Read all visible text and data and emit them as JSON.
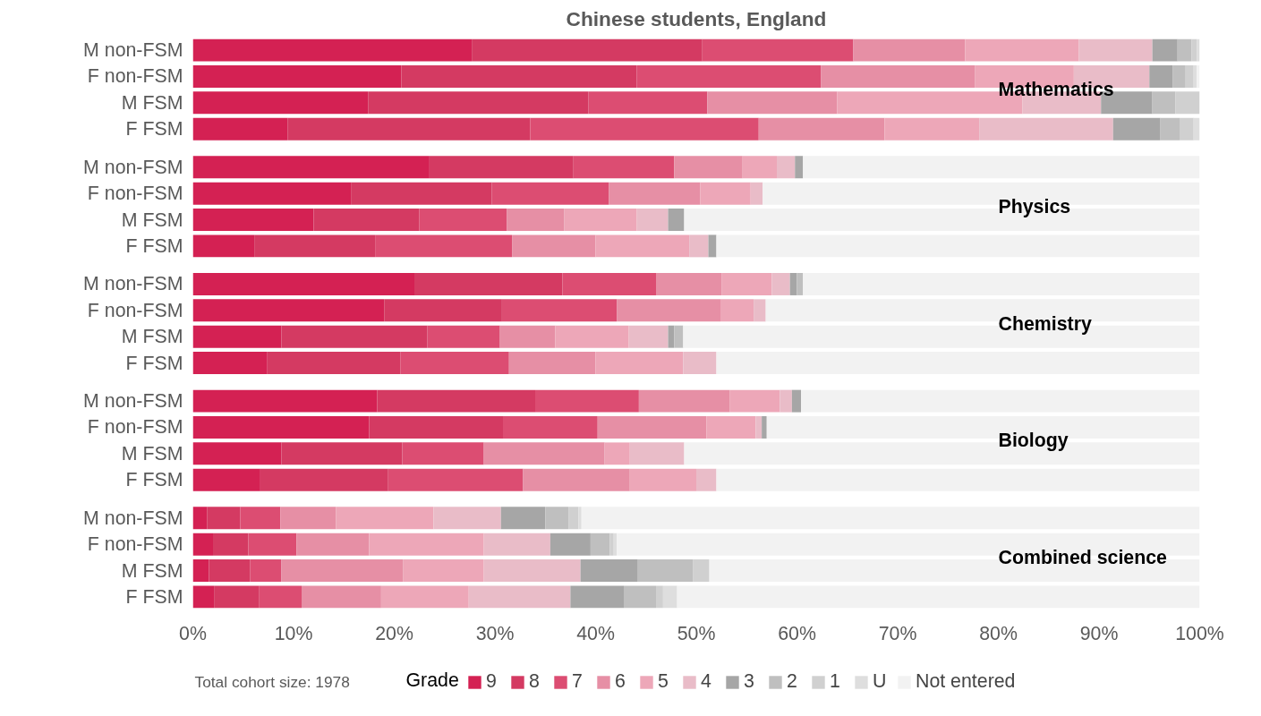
{
  "chart_data": {
    "type": "bar",
    "orientation": "horizontal",
    "stacked": true,
    "title": "Chinese students, England",
    "categories": [
      "M non-FSM",
      "F non-FSM",
      "M FSM",
      "F FSM",
      "M non-FSM",
      "F non-FSM",
      "M FSM",
      "F FSM",
      "M non-FSM",
      "F non-FSM",
      "M FSM",
      "F FSM",
      "M non-FSM",
      "F non-FSM",
      "M FSM",
      "F FSM",
      "M non-FSM",
      "F non-FSM",
      "M FSM",
      "F FSM"
    ],
    "legend_title": "Grade",
    "legend": "bottom",
    "grid": false,
    "xlim": [
      0,
      100
    ],
    "xticks": [
      {
        "value": 0,
        "label": "0%"
      },
      {
        "value": 10,
        "label": "10%"
      },
      {
        "value": 20,
        "label": "20%"
      },
      {
        "value": 30,
        "label": "30%"
      },
      {
        "value": 40,
        "label": "40%"
      },
      {
        "value": 50,
        "label": "50%"
      },
      {
        "value": 60,
        "label": "60%"
      },
      {
        "value": 70,
        "label": "70%"
      },
      {
        "value": 80,
        "label": "80%"
      },
      {
        "value": 90,
        "label": "90%"
      },
      {
        "value": 100,
        "label": "100%"
      }
    ],
    "annotations": [
      "Mathematics",
      "Physics",
      "Chemistry",
      "Biology",
      "Combined science",
      "Total cohort size: 1978"
    ],
    "series": [
      {
        "name": "9",
        "color": "#d42153",
        "values": [
          27.7,
          20.7,
          17.4,
          9.4,
          23.5,
          15.7,
          12.0,
          6.1,
          22.0,
          19.0,
          8.8,
          7.4,
          18.3,
          17.5,
          8.8,
          6.7,
          1.4,
          2.0,
          1.6,
          2.1
        ]
      },
      {
        "name": "8",
        "color": "#d43a62",
        "values": [
          22.9,
          23.4,
          21.9,
          24.1,
          14.3,
          14.0,
          10.5,
          12.0,
          14.7,
          11.7,
          14.5,
          13.2,
          15.7,
          13.3,
          12.0,
          12.7,
          3.3,
          3.5,
          4.1,
          4.5
        ]
      },
      {
        "name": "7",
        "color": "#dc4d72",
        "values": [
          15.0,
          18.3,
          11.8,
          22.7,
          10.0,
          11.6,
          8.7,
          13.6,
          9.3,
          11.4,
          7.2,
          10.8,
          10.3,
          9.4,
          8.1,
          13.4,
          4.0,
          4.8,
          3.1,
          4.2
        ]
      },
      {
        "name": "6",
        "color": "#e68fa5",
        "values": [
          11.1,
          15.3,
          12.9,
          12.5,
          6.8,
          9.1,
          5.7,
          8.3,
          6.5,
          10.3,
          5.5,
          8.6,
          9.0,
          10.8,
          12.0,
          10.6,
          5.5,
          7.2,
          12.1,
          7.9
        ]
      },
      {
        "name": "5",
        "color": "#eda7b8",
        "values": [
          11.3,
          9.8,
          18.4,
          9.4,
          3.4,
          5.0,
          7.2,
          9.3,
          5.0,
          3.3,
          7.3,
          8.7,
          5.0,
          4.9,
          2.5,
          6.6,
          9.7,
          11.4,
          8.0,
          8.7
        ]
      },
      {
        "name": "4",
        "color": "#e9bcc8",
        "values": [
          7.3,
          7.5,
          7.8,
          13.3,
          1.8,
          1.2,
          3.1,
          1.9,
          1.8,
          1.2,
          3.9,
          3.3,
          1.2,
          0.6,
          5.4,
          2.0,
          6.7,
          6.6,
          9.6,
          10.1
        ]
      },
      {
        "name": "3",
        "color": "#a6a6a6",
        "values": [
          2.5,
          2.3,
          5.1,
          4.7,
          0.8,
          0,
          1.6,
          0.8,
          0.7,
          0,
          0.6,
          0,
          0.9,
          0.5,
          0,
          0,
          4.4,
          4.0,
          5.7,
          5.3
        ]
      },
      {
        "name": "2",
        "color": "#bfbfbf",
        "values": [
          1.4,
          1.3,
          2.3,
          1.9,
          0,
          0,
          0,
          0,
          0.6,
          0,
          0.9,
          0,
          0,
          0,
          0,
          0,
          2.3,
          1.9,
          5.5,
          3.2
        ]
      },
      {
        "name": "1",
        "color": "#d0d0d0",
        "values": [
          0.5,
          0.8,
          2.4,
          1.4,
          0,
          0,
          0,
          0,
          0,
          0,
          0,
          0,
          0,
          0,
          0,
          0,
          1.0,
          0.4,
          1.6,
          0.7
        ]
      },
      {
        "name": "U",
        "color": "#dedede",
        "values": [
          0.3,
          0.3,
          0,
          0.6,
          0,
          0,
          0,
          0,
          0,
          0,
          0,
          0,
          0,
          0,
          0,
          0,
          0.3,
          0.3,
          0,
          1.4
        ]
      },
      {
        "name": "Not entered",
        "color": "#f2f2f2",
        "values": [
          0,
          0.3,
          0,
          0,
          39.4,
          43.4,
          51.2,
          48.0,
          39.4,
          43.1,
          51.3,
          48.0,
          39.6,
          43.0,
          51.2,
          48.0,
          61.4,
          57.9,
          48.7,
          51.9
        ]
      }
    ]
  }
}
